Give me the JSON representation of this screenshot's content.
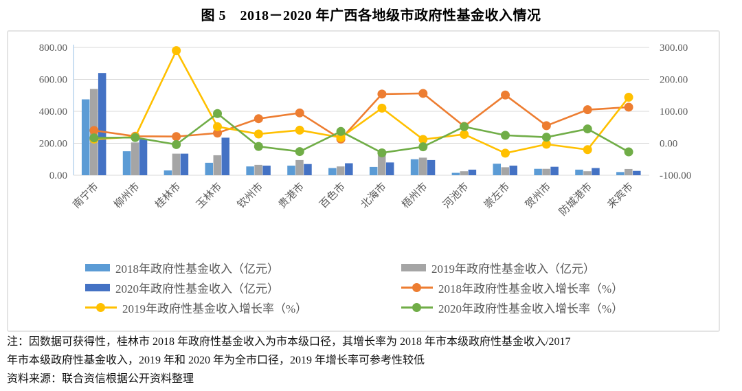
{
  "title": "图 5　2018－2020 年广西各地级市政府性基金收入情况",
  "chart_data": {
    "type": "bar+line combo (bars on left axis, growth-rate lines on right axis)",
    "categories": [
      "南宁市",
      "柳州市",
      "桂林市",
      "玉林市",
      "钦州市",
      "贵港市",
      "百色市",
      "北海市",
      "梧州市",
      "河池市",
      "崇左市",
      "贺州市",
      "防城港市",
      "来宾市"
    ],
    "bar_series": [
      {
        "name": "2018年政府性基金收入（亿元）",
        "color": "#5B9BD5",
        "axis": "left",
        "values": [
          475,
          150,
          30,
          78,
          55,
          60,
          45,
          52,
          100,
          15,
          72,
          40,
          35,
          20
        ]
      },
      {
        "name": "2019年政府性基金收入（亿元）",
        "color": "#A5A5A5",
        "axis": "left",
        "values": [
          540,
          205,
          135,
          125,
          65,
          95,
          55,
          125,
          110,
          25,
          50,
          40,
          25,
          39
        ]
      },
      {
        "name": "2020年政府性基金收入（亿元）",
        "color": "#4472C4",
        "axis": "left",
        "values": [
          640,
          225,
          135,
          235,
          60,
          70,
          75,
          80,
          95,
          35,
          60,
          53,
          45,
          27
        ]
      }
    ],
    "line_series": [
      {
        "name": "2018年政府性基金收入增长率（%）",
        "color": "#ED7D31",
        "axis": "right",
        "values": [
          40,
          22,
          21,
          32,
          77,
          95,
          13,
          154,
          156,
          53,
          151,
          55,
          105,
          113
        ]
      },
      {
        "name": "2019年政府性基金收入增长率（%）",
        "color": "#FFC000",
        "axis": "right",
        "values": [
          13,
          20,
          290,
          52,
          29,
          41,
          18,
          110,
          12,
          28,
          -31,
          -3,
          -20,
          144
        ]
      },
      {
        "name": "2020年政府性基金收入增长率（%）",
        "color": "#70AD47",
        "axis": "right",
        "values": [
          17,
          18,
          -4,
          93,
          -10,
          -26,
          37,
          -30,
          -11,
          52,
          25,
          19,
          45,
          -27
        ]
      }
    ],
    "left_axis": {
      "min": 0,
      "max": 800,
      "tick_labels": [
        "800.00",
        "600.00",
        "400.00",
        "200.00",
        "0.00"
      ]
    },
    "right_axis": {
      "min": -100,
      "max": 300,
      "tick_labels": [
        "300.00",
        "200.00",
        "100.00",
        "0.00",
        "-100.00"
      ]
    },
    "grid": true,
    "legend_position": "bottom"
  },
  "legend": {
    "columns": [
      {
        "items": [
          {
            "type": "bar",
            "color": "#5B9BD5",
            "label": "2018年政府性基金收入（亿元）"
          },
          {
            "type": "bar",
            "color": "#4472C4",
            "label": "2020年政府性基金收入（亿元）"
          },
          {
            "type": "line",
            "color": "#FFC000",
            "label": "2019年政府性基金收入增长率（%）"
          }
        ]
      },
      {
        "items": [
          {
            "type": "bar",
            "color": "#A5A5A5",
            "label": "2019年政府性基金收入（亿元）"
          },
          {
            "type": "line",
            "color": "#ED7D31",
            "label": "2018年政府性基金收入增长率（%）"
          },
          {
            "type": "line",
            "color": "#70AD47",
            "label": "2020年政府性基金收入增长率（%）"
          }
        ]
      }
    ]
  },
  "notes": {
    "line1": "注：因数据可获得性，桂林市 2018 年政府性基金收入为市本级口径，其增长率为 2018 年市本级政府性基金收入/2017",
    "line2": "年市本级政府性基金收入，2019 年和 2020 年为全市口径，2019 年增长率可参考性较低",
    "source": "资料来源：联合资信根据公开资料整理"
  },
  "colors": {
    "grid": "#D9D9D9",
    "left_axis_line": "#BDD7EE",
    "axis_text": "#595959",
    "box_border": "#E4E4E4"
  }
}
